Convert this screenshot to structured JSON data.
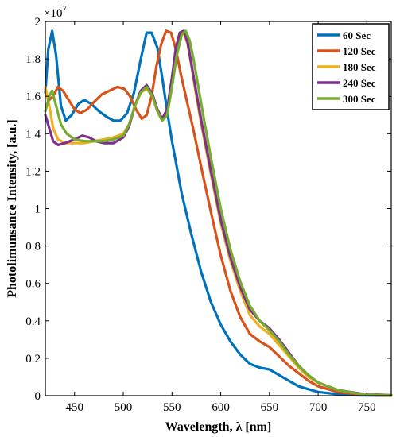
{
  "chart_data": {
    "type": "line",
    "title": "",
    "xlabel": "Wavelength, λ [nm]",
    "ylabel": "Photolimunsance Intensity, [a.u.]",
    "y_multiplier_label": "×10",
    "y_multiplier_exponent": "7",
    "xlim": [
      420,
      775
    ],
    "ylim": [
      0,
      2.0
    ],
    "x_ticks": [
      450,
      500,
      550,
      600,
      650,
      700,
      750
    ],
    "x_tick_labels": [
      "450",
      "500",
      "550",
      "600",
      "650",
      "700",
      "750"
    ],
    "y_ticks": [
      0,
      0.2,
      0.4,
      0.6,
      0.8,
      1.0,
      1.2,
      1.4,
      1.6,
      1.8,
      2.0
    ],
    "y_tick_labels": [
      "0",
      "0.2",
      "0.4",
      "0.6",
      "0.8",
      "1",
      "1.2",
      "1.4",
      "1.6",
      "1.8",
      "2"
    ],
    "grid": false,
    "legend_position": "top-right",
    "series": [
      {
        "name": "60 Sec",
        "color": "#0072BD",
        "points": [
          [
            420,
            1.62
          ],
          [
            423,
            1.85
          ],
          [
            427,
            1.95
          ],
          [
            431,
            1.82
          ],
          [
            436,
            1.55
          ],
          [
            441,
            1.47
          ],
          [
            447,
            1.5
          ],
          [
            454,
            1.56
          ],
          [
            460,
            1.58
          ],
          [
            467,
            1.56
          ],
          [
            475,
            1.52
          ],
          [
            483,
            1.49
          ],
          [
            490,
            1.47
          ],
          [
            497,
            1.47
          ],
          [
            504,
            1.51
          ],
          [
            511,
            1.62
          ],
          [
            518,
            1.8
          ],
          [
            524,
            1.94
          ],
          [
            529,
            1.94
          ],
          [
            535,
            1.86
          ],
          [
            540,
            1.7
          ],
          [
            545,
            1.52
          ],
          [
            550,
            1.36
          ],
          [
            555,
            1.22
          ],
          [
            560,
            1.08
          ],
          [
            570,
            0.86
          ],
          [
            580,
            0.66
          ],
          [
            590,
            0.5
          ],
          [
            600,
            0.38
          ],
          [
            610,
            0.29
          ],
          [
            620,
            0.22
          ],
          [
            630,
            0.17
          ],
          [
            640,
            0.15
          ],
          [
            650,
            0.14
          ],
          [
            660,
            0.11
          ],
          [
            670,
            0.08
          ],
          [
            680,
            0.05
          ],
          [
            690,
            0.035
          ],
          [
            700,
            0.02
          ],
          [
            720,
            0.008
          ],
          [
            740,
            0.002
          ],
          [
            775,
            0
          ]
        ]
      },
      {
        "name": "120 Sec",
        "color": "#D95319",
        "points": [
          [
            420,
            1.62
          ],
          [
            424,
            1.58
          ],
          [
            428,
            1.6
          ],
          [
            433,
            1.65
          ],
          [
            438,
            1.63
          ],
          [
            444,
            1.58
          ],
          [
            450,
            1.53
          ],
          [
            456,
            1.51
          ],
          [
            463,
            1.53
          ],
          [
            470,
            1.57
          ],
          [
            478,
            1.61
          ],
          [
            486,
            1.63
          ],
          [
            494,
            1.65
          ],
          [
            501,
            1.64
          ],
          [
            507,
            1.6
          ],
          [
            513,
            1.53
          ],
          [
            519,
            1.48
          ],
          [
            524,
            1.5
          ],
          [
            529,
            1.6
          ],
          [
            534,
            1.76
          ],
          [
            539,
            1.88
          ],
          [
            544,
            1.95
          ],
          [
            549,
            1.94
          ],
          [
            554,
            1.85
          ],
          [
            559,
            1.72
          ],
          [
            565,
            1.58
          ],
          [
            572,
            1.42
          ],
          [
            580,
            1.22
          ],
          [
            590,
            0.98
          ],
          [
            600,
            0.75
          ],
          [
            610,
            0.56
          ],
          [
            620,
            0.42
          ],
          [
            630,
            0.33
          ],
          [
            640,
            0.29
          ],
          [
            650,
            0.26
          ],
          [
            660,
            0.21
          ],
          [
            670,
            0.16
          ],
          [
            680,
            0.12
          ],
          [
            690,
            0.08
          ],
          [
            700,
            0.05
          ],
          [
            720,
            0.02
          ],
          [
            745,
            0.005
          ],
          [
            775,
            0
          ]
        ]
      },
      {
        "name": "180 Sec",
        "color": "#EDB120",
        "points": [
          [
            420,
            1.65
          ],
          [
            424,
            1.55
          ],
          [
            428,
            1.43
          ],
          [
            433,
            1.37
          ],
          [
            440,
            1.35
          ],
          [
            450,
            1.35
          ],
          [
            460,
            1.35
          ],
          [
            470,
            1.36
          ],
          [
            480,
            1.37
          ],
          [
            490,
            1.38
          ],
          [
            500,
            1.4
          ],
          [
            506,
            1.45
          ],
          [
            512,
            1.55
          ],
          [
            518,
            1.62
          ],
          [
            524,
            1.64
          ],
          [
            530,
            1.6
          ],
          [
            535,
            1.52
          ],
          [
            540,
            1.47
          ],
          [
            545,
            1.52
          ],
          [
            550,
            1.7
          ],
          [
            554,
            1.85
          ],
          [
            558,
            1.93
          ],
          [
            562,
            1.94
          ],
          [
            566,
            1.88
          ],
          [
            570,
            1.76
          ],
          [
            575,
            1.6
          ],
          [
            580,
            1.45
          ],
          [
            590,
            1.18
          ],
          [
            600,
            0.92
          ],
          [
            610,
            0.72
          ],
          [
            620,
            0.56
          ],
          [
            630,
            0.43
          ],
          [
            640,
            0.37
          ],
          [
            650,
            0.33
          ],
          [
            660,
            0.27
          ],
          [
            670,
            0.21
          ],
          [
            680,
            0.15
          ],
          [
            690,
            0.1
          ],
          [
            700,
            0.07
          ],
          [
            720,
            0.03
          ],
          [
            745,
            0.008
          ],
          [
            775,
            0.001
          ]
        ]
      },
      {
        "name": "240 Sec",
        "color": "#7E2F8E",
        "points": [
          [
            420,
            1.5
          ],
          [
            424,
            1.43
          ],
          [
            428,
            1.36
          ],
          [
            433,
            1.34
          ],
          [
            440,
            1.35
          ],
          [
            450,
            1.37
          ],
          [
            458,
            1.39
          ],
          [
            465,
            1.38
          ],
          [
            472,
            1.36
          ],
          [
            480,
            1.35
          ],
          [
            490,
            1.35
          ],
          [
            500,
            1.38
          ],
          [
            506,
            1.44
          ],
          [
            512,
            1.55
          ],
          [
            518,
            1.63
          ],
          [
            524,
            1.66
          ],
          [
            530,
            1.61
          ],
          [
            535,
            1.53
          ],
          [
            540,
            1.48
          ],
          [
            545,
            1.53
          ],
          [
            550,
            1.7
          ],
          [
            554,
            1.86
          ],
          [
            558,
            1.94
          ],
          [
            562,
            1.95
          ],
          [
            566,
            1.89
          ],
          [
            570,
            1.77
          ],
          [
            575,
            1.62
          ],
          [
            580,
            1.47
          ],
          [
            590,
            1.2
          ],
          [
            600,
            0.94
          ],
          [
            610,
            0.74
          ],
          [
            620,
            0.58
          ],
          [
            630,
            0.46
          ],
          [
            640,
            0.4
          ],
          [
            650,
            0.36
          ],
          [
            660,
            0.3
          ],
          [
            670,
            0.23
          ],
          [
            680,
            0.16
          ],
          [
            690,
            0.11
          ],
          [
            700,
            0.07
          ],
          [
            720,
            0.03
          ],
          [
            745,
            0.01
          ],
          [
            775,
            0.002
          ]
        ]
      },
      {
        "name": "300 Sec",
        "color": "#77AC30",
        "points": [
          [
            420,
            1.52
          ],
          [
            424,
            1.6
          ],
          [
            427,
            1.63
          ],
          [
            431,
            1.55
          ],
          [
            436,
            1.45
          ],
          [
            442,
            1.4
          ],
          [
            450,
            1.37
          ],
          [
            460,
            1.36
          ],
          [
            470,
            1.36
          ],
          [
            480,
            1.36
          ],
          [
            490,
            1.37
          ],
          [
            500,
            1.39
          ],
          [
            506,
            1.45
          ],
          [
            512,
            1.55
          ],
          [
            518,
            1.62
          ],
          [
            524,
            1.65
          ],
          [
            530,
            1.6
          ],
          [
            535,
            1.52
          ],
          [
            540,
            1.47
          ],
          [
            545,
            1.5
          ],
          [
            550,
            1.65
          ],
          [
            555,
            1.82
          ],
          [
            560,
            1.93
          ],
          [
            564,
            1.95
          ],
          [
            568,
            1.9
          ],
          [
            572,
            1.8
          ],
          [
            577,
            1.65
          ],
          [
            582,
            1.5
          ],
          [
            590,
            1.27
          ],
          [
            600,
            1.0
          ],
          [
            610,
            0.78
          ],
          [
            620,
            0.61
          ],
          [
            630,
            0.48
          ],
          [
            640,
            0.4
          ],
          [
            650,
            0.35
          ],
          [
            660,
            0.29
          ],
          [
            670,
            0.22
          ],
          [
            680,
            0.16
          ],
          [
            690,
            0.11
          ],
          [
            700,
            0.07
          ],
          [
            720,
            0.03
          ],
          [
            745,
            0.008
          ],
          [
            775,
            0.002
          ]
        ]
      }
    ]
  }
}
